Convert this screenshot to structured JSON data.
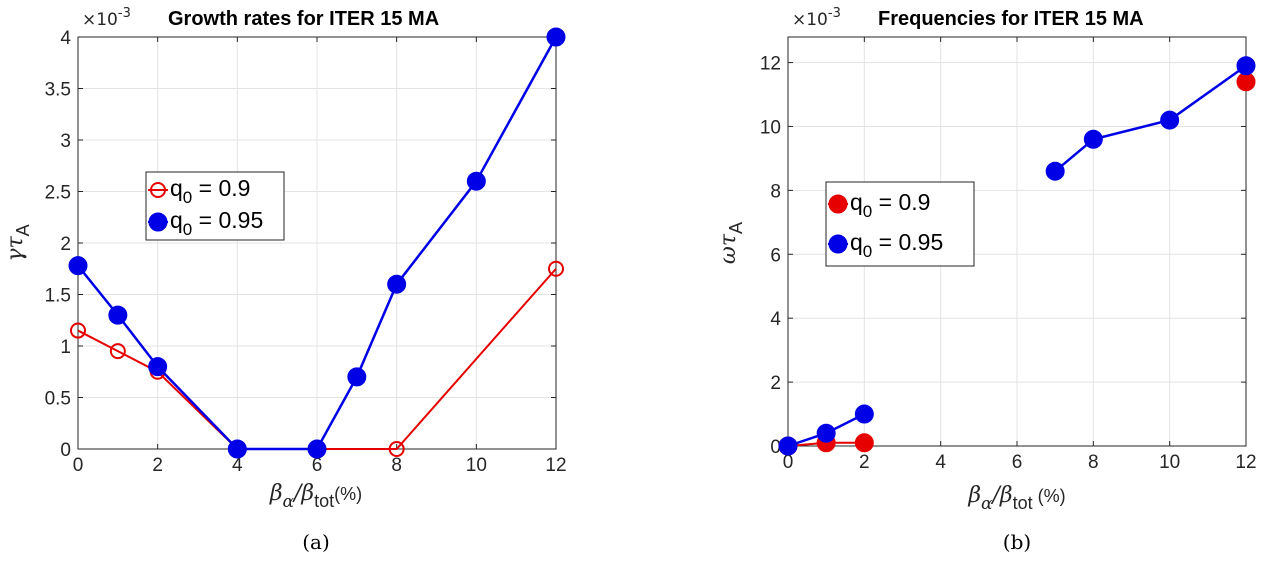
{
  "chart_data": [
    {
      "type": "line",
      "title": "Growth rates for ITER 15 MA",
      "exponent_label": "×10",
      "exponent_power": "-3",
      "ylabel": {
        "main": "γτ",
        "sub": "A"
      },
      "xlabel": {
        "main": "β",
        "sub1": "α",
        "mid": "/β",
        "sub2": "tot",
        "tail": "(%)"
      },
      "caption": "(a)",
      "xlim": [
        0,
        12
      ],
      "ylim": [
        0,
        4
      ],
      "xticks": [
        0,
        2,
        4,
        6,
        8,
        10,
        12
      ],
      "yticks": [
        0,
        0.5,
        1,
        1.5,
        2,
        2.5,
        3,
        3.5,
        4
      ],
      "ytick_labels": [
        "0",
        "0.5",
        "1",
        "1.5",
        "2",
        "2.5",
        "3",
        "3.5",
        "4"
      ],
      "grid": true,
      "legend_position": "center-left",
      "series": [
        {
          "name": "q0 = 0.9",
          "legend_main": "q",
          "legend_sub": "0",
          "legend_tail": " = 0.9",
          "color": "#e60000",
          "marker": "open-circle",
          "x": [
            0,
            1,
            2,
            4,
            6,
            8,
            12
          ],
          "y": [
            1.15,
            0.95,
            0.75,
            0,
            0,
            0,
            1.75
          ],
          "segments": [
            [
              0,
              6
            ]
          ]
        },
        {
          "name": "q0 = 0.95",
          "legend_main": "q",
          "legend_sub": "0",
          "legend_tail": " = 0.95",
          "color": "#0000e6",
          "marker": "filled-circle",
          "x": [
            0,
            1,
            2,
            4,
            6,
            7,
            8,
            10,
            12
          ],
          "y": [
            1.78,
            1.3,
            0.8,
            0,
            0,
            0.7,
            1.6,
            2.6,
            4.0
          ],
          "segments": [
            [
              0,
              8
            ]
          ]
        }
      ]
    },
    {
      "type": "line",
      "title": "Frequencies for ITER 15 MA",
      "exponent_label": "×10",
      "exponent_power": "-3",
      "ylabel": {
        "main": "ωτ",
        "sub": "A"
      },
      "xlabel": {
        "main": "β",
        "sub1": "α",
        "mid": "/β",
        "sub2": "tot",
        "tail": " (%)"
      },
      "caption": "(b)",
      "xlim": [
        0,
        12
      ],
      "ylim": [
        0,
        12.8
      ],
      "xticks": [
        0,
        2,
        4,
        6,
        8,
        10,
        12
      ],
      "yticks": [
        0,
        2,
        4,
        6,
        8,
        10,
        12
      ],
      "ytick_labels": [
        "0",
        "2",
        "4",
        "6",
        "8",
        "10",
        "12"
      ],
      "grid": true,
      "legend_position": "center-left",
      "series": [
        {
          "name": "q0 = 0.9",
          "legend_main": "q",
          "legend_sub": "0",
          "legend_tail": " = 0.9",
          "color": "#e60000",
          "marker": "filled-circle",
          "x": [
            0,
            1,
            2,
            12
          ],
          "y": [
            0,
            0.1,
            0.1,
            11.4
          ],
          "segments": [
            [
              0,
              2
            ]
          ]
        },
        {
          "name": "q0 = 0.95",
          "legend_main": "q",
          "legend_sub": "0",
          "legend_tail": " = 0.95",
          "color": "#0000e6",
          "marker": "filled-circle",
          "x": [
            0,
            1,
            2,
            7,
            8,
            10,
            12
          ],
          "y": [
            0,
            0.4,
            1.0,
            8.6,
            9.6,
            10.2,
            11.9
          ],
          "segments": [
            [
              0,
              2
            ],
            [
              3,
              6
            ]
          ]
        }
      ]
    }
  ]
}
